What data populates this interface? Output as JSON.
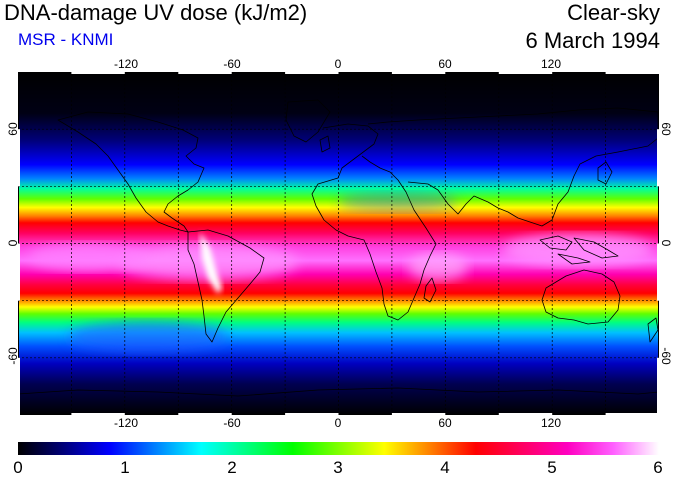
{
  "header": {
    "title": "DNA-damage UV dose (kJ/m2)",
    "subtitle": "MSR - KNMI",
    "condition": "Clear-sky",
    "date": "6 March 1994"
  },
  "colors": {
    "subtitle": "#0000ee",
    "scale": [
      "#000000",
      "#00007a",
      "#0000ff",
      "#0080ff",
      "#00ffff",
      "#00ff80",
      "#00ff00",
      "#80ff00",
      "#ffff00",
      "#ff8000",
      "#ff0000",
      "#ff0060",
      "#ff00c0",
      "#ff60ff",
      "#ffffff"
    ]
  },
  "map": {
    "lon_ticks": [
      "-120",
      "-60",
      "0",
      "60",
      "120"
    ],
    "lat_ticks_left": [
      "60",
      "0",
      "-60"
    ],
    "lat_ticks_right": [
      "60",
      "0",
      "-60"
    ]
  },
  "colorbar": {
    "labels": [
      "0",
      "1",
      "2",
      "3",
      "4",
      "5",
      "6"
    ],
    "min": 0,
    "max": 6
  }
}
